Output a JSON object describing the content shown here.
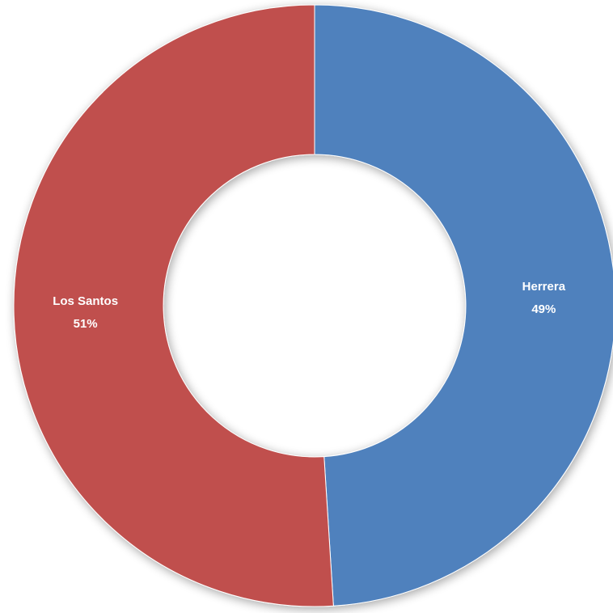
{
  "chart_data": {
    "type": "donut",
    "categories": [
      "Herrera",
      "Los Santos"
    ],
    "values": [
      49,
      51
    ],
    "value_labels": [
      "49%",
      "51%"
    ],
    "colors": [
      "#4f81bd",
      "#c0504d"
    ]
  }
}
